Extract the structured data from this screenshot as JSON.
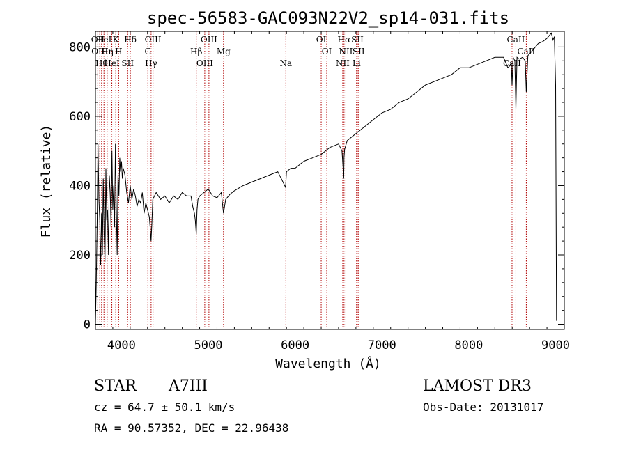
{
  "chart_data": {
    "type": "line",
    "title": "spec-56583-GAC093N22V2_sp14-031.fits",
    "xlabel": "Wavelength (Å)",
    "ylabel": "Flux (relative)",
    "xlim": [
      3700,
      9100
    ],
    "ylim": [
      -15,
      845
    ],
    "x_ticks": [
      4000,
      5000,
      6000,
      7000,
      8000,
      9000
    ],
    "y_ticks": [
      0,
      200,
      400,
      600,
      800
    ],
    "x_tick_labels": [
      "4000",
      "5000",
      "6000",
      "7000",
      "8000",
      "9000"
    ],
    "y_tick_labels": [
      "0",
      "200",
      "400",
      "600",
      "800"
    ],
    "grid": false,
    "series": [
      {
        "x": [
          3700,
          3710,
          3720,
          3730,
          3740,
          3750,
          3760,
          3770,
          3780,
          3790,
          3800,
          3810,
          3820,
          3830,
          3840,
          3850,
          3860,
          3870,
          3880,
          3890,
          3900,
          3910,
          3920,
          3930,
          3940,
          3950,
          3960,
          3970,
          3980,
          3990,
          4000,
          4010,
          4020,
          4040,
          4060,
          4080,
          4100,
          4120,
          4140,
          4160,
          4180,
          4200,
          4220,
          4240,
          4260,
          4280,
          4300,
          4320,
          4330,
          4340,
          4350,
          4360,
          4380,
          4400,
          4450,
          4500,
          4550,
          4600,
          4650,
          4700,
          4750,
          4800,
          4820,
          4840,
          4850,
          4861,
          4870,
          4880,
          4900,
          4950,
          5000,
          5050,
          5100,
          5150,
          5175,
          5200,
          5250,
          5300,
          5400,
          5500,
          5600,
          5700,
          5800,
          5850,
          5890,
          5900,
          5950,
          6000,
          6100,
          6200,
          6300,
          6400,
          6500,
          6540,
          6560,
          6563,
          6570,
          6600,
          6700,
          6800,
          6900,
          7000,
          7100,
          7200,
          7300,
          7400,
          7500,
          7600,
          7700,
          7800,
          7900,
          8000,
          8100,
          8200,
          8300,
          8400,
          8450,
          8490,
          8498,
          8510,
          8530,
          8542,
          8555,
          8580,
          8620,
          8650,
          8662,
          8680,
          8700,
          8750,
          8800,
          8850,
          8900,
          8950,
          8970,
          8985,
          8990,
          8995,
          9000,
          9010
        ],
        "y": [
          0,
          120,
          300,
          520,
          360,
          300,
          170,
          320,
          200,
          420,
          260,
          180,
          450,
          300,
          330,
          200,
          430,
          380,
          280,
          500,
          330,
          400,
          280,
          520,
          340,
          200,
          430,
          370,
          480,
          440,
          470,
          420,
          450,
          430,
          380,
          350,
          400,
          360,
          390,
          370,
          340,
          360,
          350,
          380,
          320,
          350,
          330,
          310,
          280,
          240,
          290,
          360,
          370,
          380,
          360,
          370,
          350,
          370,
          360,
          380,
          370,
          370,
          340,
          320,
          300,
          260,
          330,
          360,
          370,
          380,
          390,
          370,
          365,
          380,
          320,
          360,
          375,
          385,
          400,
          410,
          420,
          430,
          440,
          415,
          395,
          440,
          450,
          450,
          470,
          480,
          490,
          510,
          520,
          500,
          420,
          480,
          505,
          530,
          550,
          570,
          590,
          610,
          620,
          640,
          650,
          670,
          690,
          700,
          710,
          720,
          740,
          740,
          750,
          760,
          770,
          770,
          740,
          750,
          690,
          770,
          760,
          620,
          770,
          765,
          770,
          760,
          670,
          775,
          780,
          795,
          810,
          815,
          825,
          840,
          820,
          830,
          780,
          740,
          690,
          10
        ]
      }
    ],
    "line_markers": [
      {
        "x": 3727,
        "label": "OII"
      },
      {
        "x": 3750,
        "label": "OIII"
      },
      {
        "x": 3771,
        "label": "Hθ"
      },
      {
        "x": 3798,
        "label": "HeI"
      },
      {
        "x": 3835,
        "label": "Hη"
      },
      {
        "x": 3889,
        "label": "HeI"
      },
      {
        "x": 3934,
        "label": "K"
      },
      {
        "x": 3968,
        "label": "H"
      },
      {
        "x": 4071,
        "label": "SII"
      },
      {
        "x": 4102,
        "label": "Hδ"
      },
      {
        "x": 4304,
        "label": "G"
      },
      {
        "x": 4341,
        "label": "Hγ"
      },
      {
        "x": 4363,
        "label": "OIII"
      },
      {
        "x": 4861,
        "label": "Hβ"
      },
      {
        "x": 4959,
        "label": "OIII"
      },
      {
        "x": 5007,
        "label": "OIII"
      },
      {
        "x": 5175,
        "label": "Mg"
      },
      {
        "x": 5893,
        "label": "Na"
      },
      {
        "x": 6300,
        "label": "OI"
      },
      {
        "x": 6364,
        "label": "OI"
      },
      {
        "x": 6548,
        "label": "NII"
      },
      {
        "x": 6563,
        "label": "Hα"
      },
      {
        "x": 6584,
        "label": "NII"
      },
      {
        "x": 6707,
        "label": "Li"
      },
      {
        "x": 6717,
        "label": "SII"
      },
      {
        "x": 6731,
        "label": "SII"
      },
      {
        "x": 8498,
        "label": "CaII"
      },
      {
        "x": 8542,
        "label": "CaII"
      },
      {
        "x": 8662,
        "label": "CaII"
      }
    ]
  },
  "info": {
    "object_class": "STAR",
    "subclass": "A7III",
    "survey": "LAMOST DR3",
    "redshift_text": "cz = 64.7 ± 50.1 km/s",
    "obs_date_text": "Obs-Date: 20131017",
    "coords_text": "RA =  90.57352, DEC =  22.96438"
  }
}
